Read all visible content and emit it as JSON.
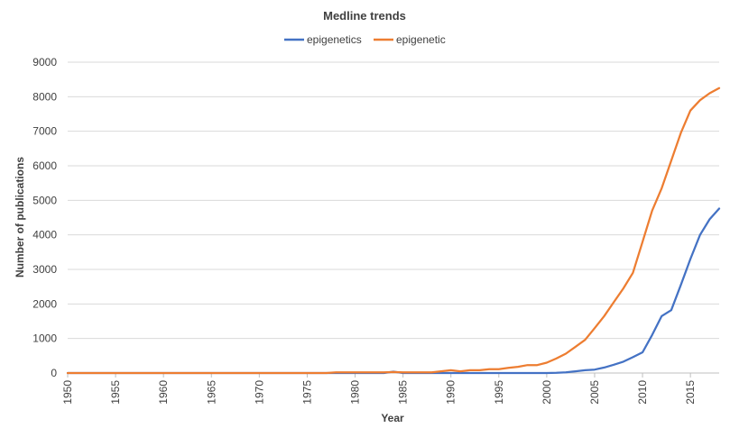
{
  "chart_data": {
    "type": "line",
    "title": "Medline trends",
    "xlabel": "Year",
    "ylabel": "Number of publications",
    "xlim": [
      1950,
      2018
    ],
    "ylim": [
      0,
      9000
    ],
    "grid": true,
    "legend_position": "top",
    "x_ticks": [
      "1950",
      "1955",
      "1960",
      "1965",
      "1970",
      "1975",
      "1980",
      "1985",
      "1990",
      "1995",
      "2000",
      "2005",
      "2010",
      "2015"
    ],
    "y_ticks": [
      "0",
      "1000",
      "2000",
      "3000",
      "4000",
      "5000",
      "6000",
      "7000",
      "8000",
      "9000"
    ],
    "series": [
      {
        "name": "epigenetics",
        "color": "#4472c4",
        "x": [
          1950,
          1983,
          1984,
          1985,
          1990,
          2000,
          2001,
          2002,
          2003,
          2004,
          2005,
          2006,
          2007,
          2008,
          2009,
          2010,
          2011,
          2012,
          2013,
          2014,
          2015,
          2016,
          2017,
          2018
        ],
        "y": [
          0,
          0,
          40,
          0,
          0,
          0,
          5,
          20,
          50,
          80,
          100,
          160,
          240,
          330,
          460,
          600,
          1100,
          1650,
          1820,
          2550,
          3300,
          4000,
          4450,
          4760
        ]
      },
      {
        "name": "epigenetic",
        "color": "#ed7d31",
        "x": [
          1950,
          1977,
          1978,
          1980,
          1983,
          1984,
          1985,
          1988,
          1990,
          1991,
          1992,
          1993,
          1994,
          1995,
          1996,
          1997,
          1998,
          1999,
          2000,
          2001,
          2002,
          2003,
          2004,
          2005,
          2006,
          2007,
          2008,
          2009,
          2010,
          2011,
          2012,
          2013,
          2014,
          2015,
          2016,
          2017,
          2018
        ],
        "y": [
          0,
          0,
          20,
          20,
          20,
          30,
          20,
          20,
          80,
          50,
          80,
          80,
          110,
          110,
          150,
          180,
          230,
          230,
          300,
          420,
          560,
          760,
          960,
          1300,
          1650,
          2050,
          2450,
          2900,
          3800,
          4700,
          5350,
          6150,
          6950,
          7600,
          7900,
          8100,
          8250
        ]
      }
    ]
  }
}
